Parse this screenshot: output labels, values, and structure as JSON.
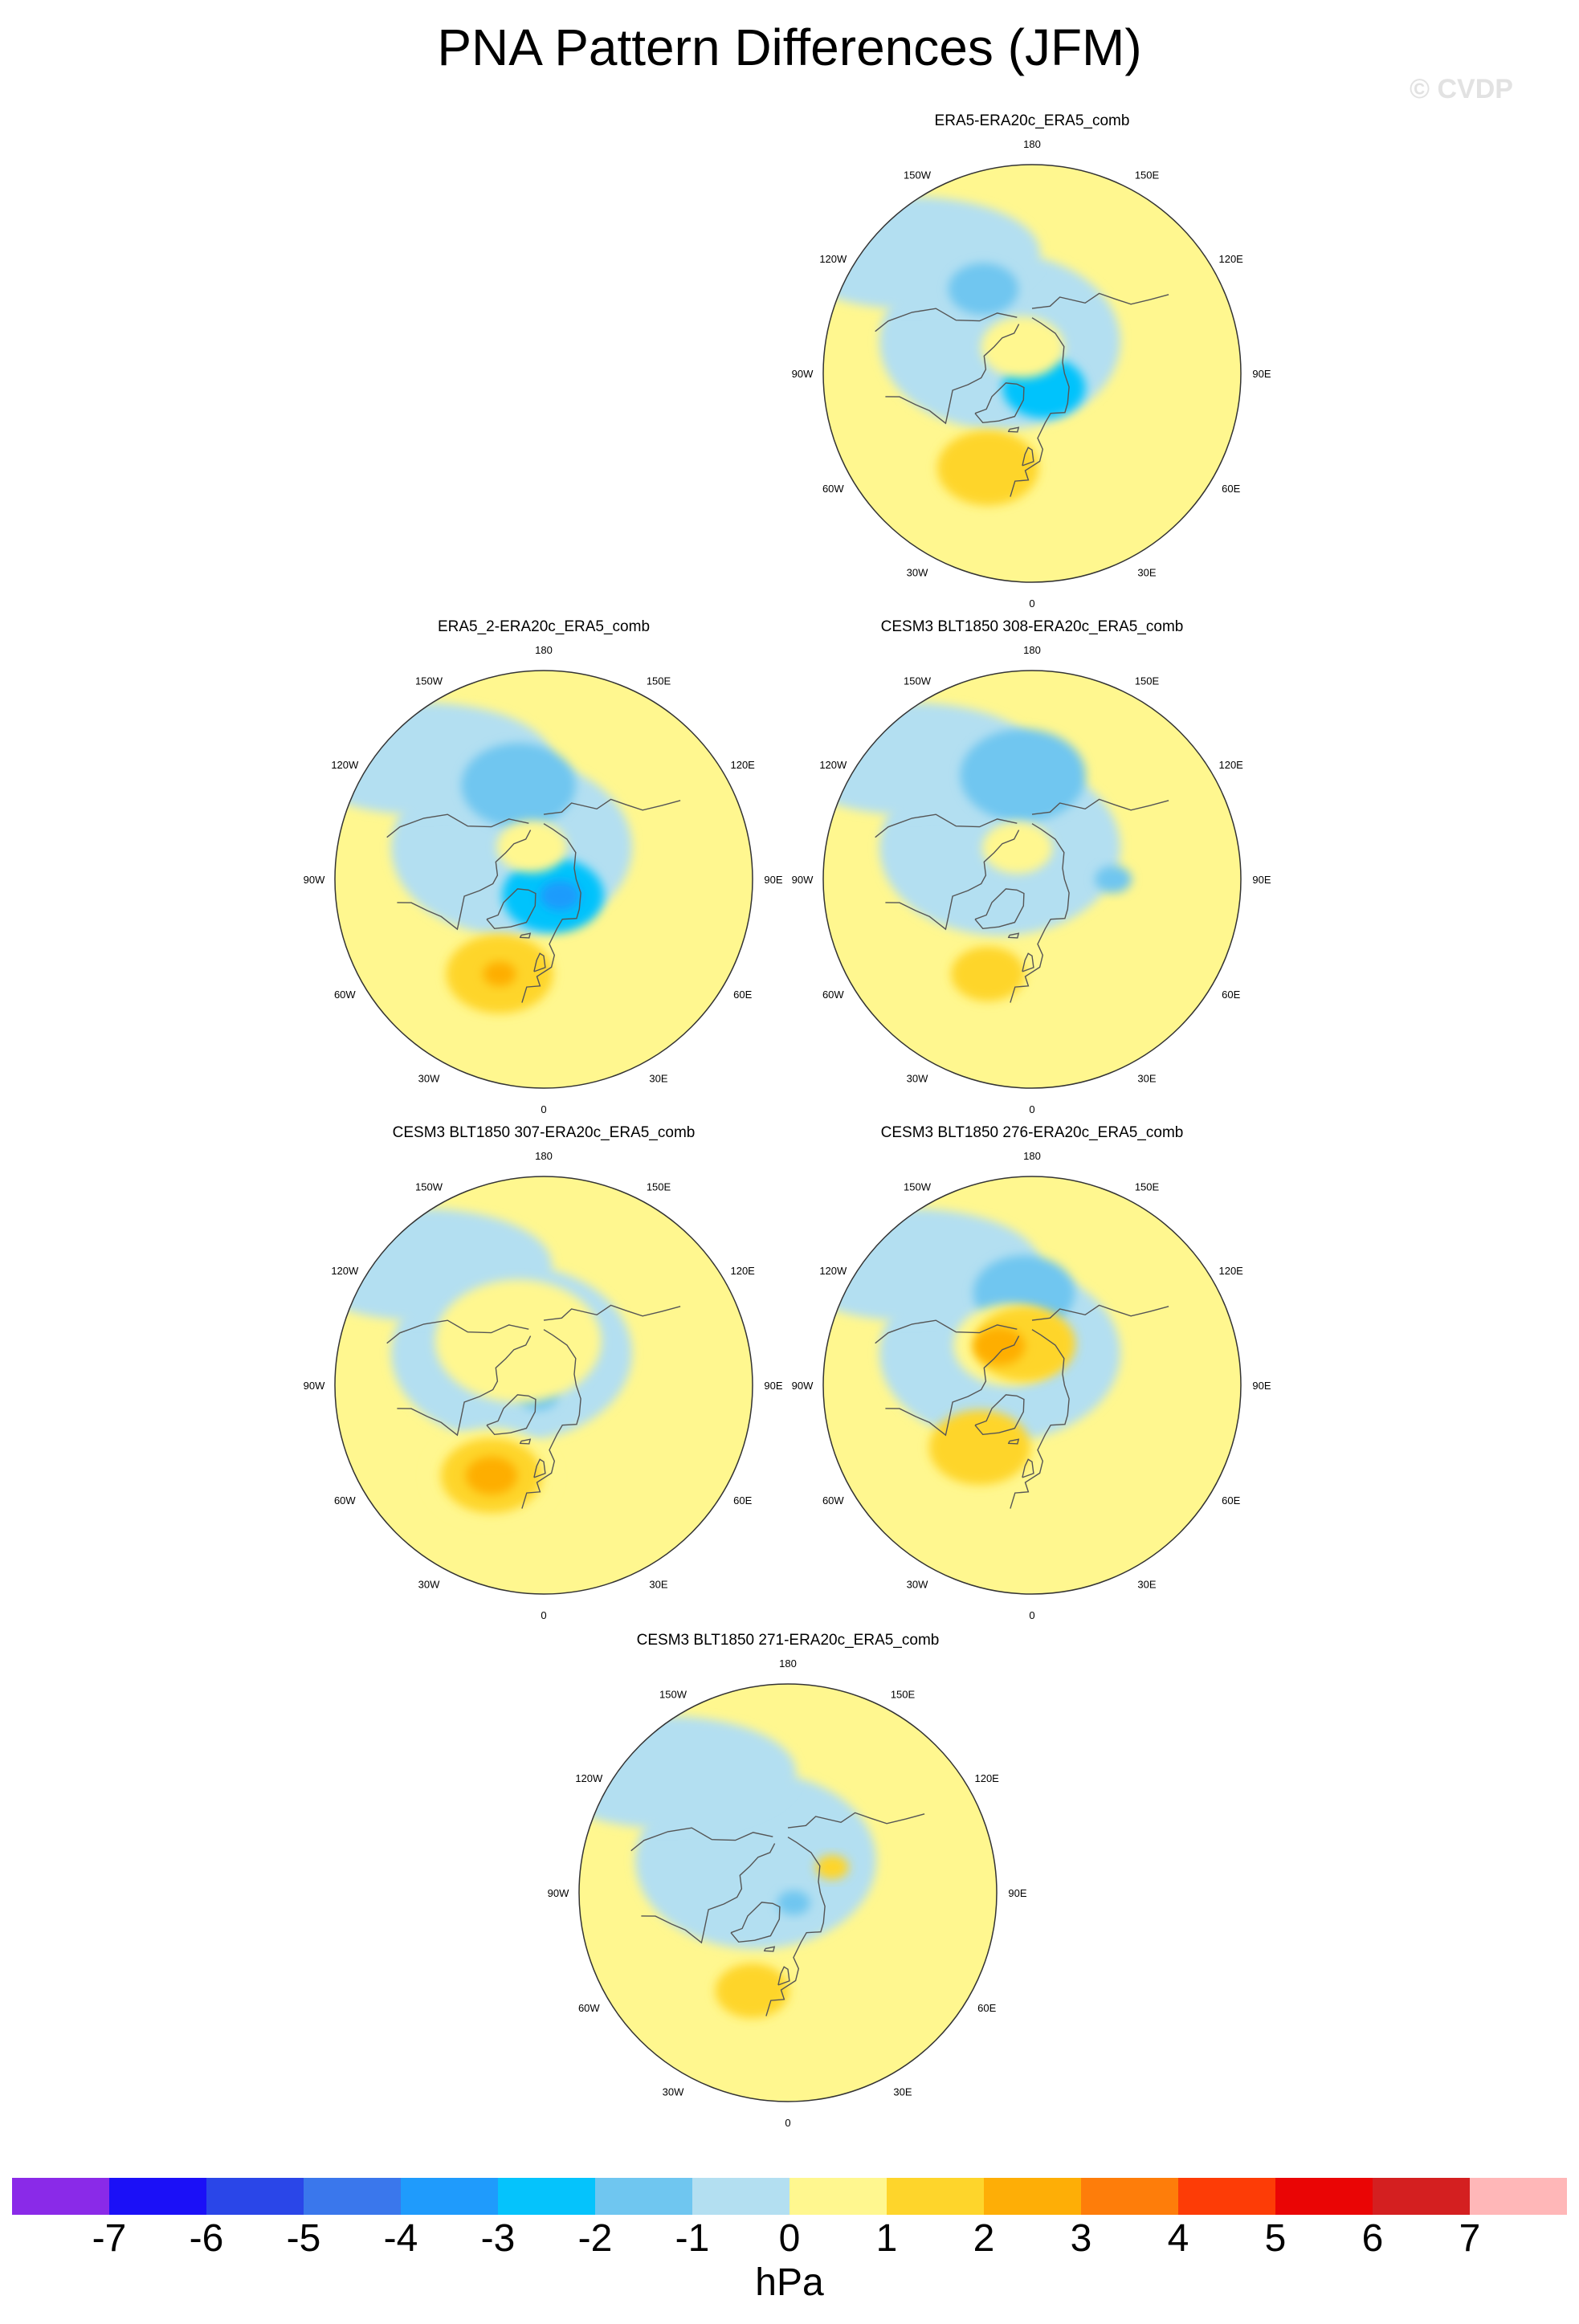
{
  "figure": {
    "title": "PNA Pattern Differences (JFM)",
    "watermark": "© CVDP"
  },
  "longitude_labels": [
    "180",
    "150E",
    "120E",
    "90E",
    "60E",
    "30E",
    "0",
    "30W",
    "60W",
    "90W",
    "120W",
    "150W"
  ],
  "panels": [
    {
      "id": "era5",
      "title": "ERA5-ERA20c_ERA5_comb",
      "features": [
        {
          "kind": "neg",
          "level": 2,
          "lon": -150,
          "lat": 48,
          "r": 38
        },
        {
          "kind": "neg",
          "level": 3,
          "lon": 40,
          "lat": 82,
          "r": 45
        },
        {
          "kind": "pos",
          "level": 1,
          "lon": -160,
          "lat": 78,
          "r": 45
        },
        {
          "kind": "pos",
          "level": 2,
          "lon": -25,
          "lat": 45,
          "r": 55
        }
      ]
    },
    {
      "id": "era5_2",
      "title": "ERA5_2-ERA20c_ERA5_comb",
      "features": [
        {
          "kind": "neg",
          "level": 2,
          "lon": -165,
          "lat": 48,
          "r": 62
        },
        {
          "kind": "neg",
          "level": 3,
          "lon": 30,
          "lat": 82,
          "r": 55
        },
        {
          "kind": "neg",
          "level": 4,
          "lon": 45,
          "lat": 80,
          "r": 22
        },
        {
          "kind": "pos",
          "level": 1,
          "lon": -160,
          "lat": 75,
          "r": 38
        },
        {
          "kind": "pos",
          "level": 2,
          "lon": -25,
          "lat": 45,
          "r": 58
        },
        {
          "kind": "pos",
          "level": 3,
          "lon": -25,
          "lat": 45,
          "r": 18
        }
      ]
    },
    {
      "id": "cesm307",
      "title": "CESM3 BLT1850 307-ERA20c_ERA5_comb",
      "features": [
        {
          "kind": "neg",
          "level": 2,
          "lon": -30,
          "lat": 85,
          "r": 22
        },
        {
          "kind": "pos",
          "level": 1,
          "lon": -150,
          "lat": 68,
          "r": 90
        },
        {
          "kind": "pos",
          "level": 1,
          "lon": -30,
          "lat": 45,
          "r": 70
        },
        {
          "kind": "pos",
          "level": 2,
          "lon": -30,
          "lat": 45,
          "r": 55
        },
        {
          "kind": "pos",
          "level": 3,
          "lon": -30,
          "lat": 45,
          "r": 28
        }
      ]
    },
    {
      "id": "cesm308",
      "title": "CESM3 BLT1850 308-ERA20c_ERA5_comb",
      "features": [
        {
          "kind": "neg",
          "level": 2,
          "lon": -175,
          "lat": 45,
          "r": 68
        },
        {
          "kind": "neg",
          "level": 2,
          "lon": 90,
          "lat": 55,
          "r": 20
        },
        {
          "kind": "pos",
          "level": 1,
          "lon": -155,
          "lat": 75,
          "r": 38
        },
        {
          "kind": "pos",
          "level": 2,
          "lon": -25,
          "lat": 45,
          "r": 40
        }
      ]
    },
    {
      "id": "cesm276",
      "title": "CESM3 BLT1850 276-ERA20c_ERA5_comb",
      "features": [
        {
          "kind": "neg",
          "level": 2,
          "lon": -175,
          "lat": 50,
          "r": 55
        },
        {
          "kind": "pos",
          "level": 1,
          "lon": -150,
          "lat": 70,
          "r": 60
        },
        {
          "kind": "pos",
          "level": 2,
          "lon": -170,
          "lat": 72,
          "r": 55
        },
        {
          "kind": "pos",
          "level": 3,
          "lon": -140,
          "lat": 68,
          "r": 28
        },
        {
          "kind": "pos",
          "level": 2,
          "lon": -40,
          "lat": 55,
          "r": 55
        }
      ]
    },
    {
      "id": "cesm271",
      "title": "CESM3 BLT1850 271-ERA20c_ERA5_comb",
      "features": [
        {
          "kind": "neg",
          "level": 2,
          "lon": 30,
          "lat": 85,
          "r": 18
        },
        {
          "kind": "pos",
          "level": 2,
          "lon": 120,
          "lat": 68,
          "r": 18
        },
        {
          "kind": "pos",
          "level": 2,
          "lon": -20,
          "lat": 45,
          "r": 40
        }
      ]
    }
  ],
  "colorbar": {
    "unit": "hPa",
    "tick_labels": [
      "-7",
      "-6",
      "-5",
      "-4",
      "-3",
      "-2",
      "-1",
      "0",
      "1",
      "2",
      "3",
      "4",
      "5",
      "6",
      "7"
    ],
    "colors": [
      "#8a2ae8",
      "#1b10f7",
      "#2a46e8",
      "#3a77ec",
      "#1f9bfc",
      "#05c3fc",
      "#6fc6f0",
      "#b3dff1",
      "#fff78f",
      "#fed52b",
      "#feae06",
      "#fe7d0a",
      "#fd3c06",
      "#ea0505",
      "#d41f20",
      "#ffb7b8"
    ]
  }
}
